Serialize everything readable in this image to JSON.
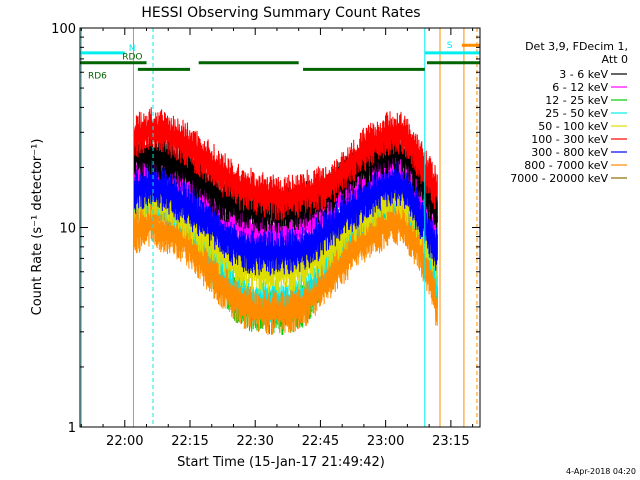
{
  "chart_data": {
    "type": "line",
    "title": "HESSI Observing Summary Count Rates",
    "xlabel": "Start Time (15-Jan-17 21:49:42)",
    "ylabel": "Count Rate (s⁻¹ detector⁻¹)",
    "yscale": "log",
    "ylim": [
      1,
      100
    ],
    "xlim_min": [
      -10.3,
      81.7
    ],
    "x_ticks": [
      {
        "m": 0,
        "label": "22:00"
      },
      {
        "m": 15,
        "label": "22:15"
      },
      {
        "m": 30,
        "label": "22:30"
      },
      {
        "m": 45,
        "label": "22:45"
      },
      {
        "m": 60,
        "label": "23:00"
      },
      {
        "m": 75,
        "label": "23:15"
      }
    ],
    "y_ticks": [
      {
        "v": 1,
        "label": "1"
      },
      {
        "v": 10,
        "label": "10"
      },
      {
        "v": 100,
        "label": "100"
      }
    ],
    "time_axis_note": "x values are minutes after 22:00",
    "legend": {
      "position": "right",
      "header": [
        "Det 3,9, FDecim 1,",
        "Att 0"
      ]
    },
    "series": [
      {
        "name": "3 - 6 keV",
        "color": "#000000",
        "envelope": [
          [
            2,
            24
          ],
          [
            6,
            25
          ],
          [
            10,
            23
          ],
          [
            14,
            21
          ],
          [
            18,
            18
          ],
          [
            22,
            15
          ],
          [
            26,
            14
          ],
          [
            30,
            13
          ],
          [
            34,
            13
          ],
          [
            38,
            13
          ],
          [
            42,
            14
          ],
          [
            46,
            15
          ],
          [
            50,
            18
          ],
          [
            54,
            21
          ],
          [
            58,
            24
          ],
          [
            60,
            25
          ],
          [
            62,
            26
          ],
          [
            64,
            25
          ],
          [
            66,
            22
          ],
          [
            68,
            19
          ],
          [
            70,
            15
          ],
          [
            72,
            13
          ]
        ]
      },
      {
        "name": "6 - 12 keV",
        "color": "#ff00ff",
        "envelope": [
          [
            2,
            20
          ],
          [
            6,
            21
          ],
          [
            10,
            19
          ],
          [
            14,
            17
          ],
          [
            18,
            15
          ],
          [
            22,
            12
          ],
          [
            26,
            11
          ],
          [
            30,
            10
          ],
          [
            34,
            10
          ],
          [
            38,
            10
          ],
          [
            42,
            11
          ],
          [
            46,
            12
          ],
          [
            50,
            15
          ],
          [
            54,
            18
          ],
          [
            58,
            20
          ],
          [
            60,
            21
          ],
          [
            62,
            22
          ],
          [
            64,
            21
          ],
          [
            66,
            18
          ],
          [
            68,
            15
          ],
          [
            70,
            12
          ],
          [
            72,
            10
          ]
        ]
      },
      {
        "name": "12 - 25 keV",
        "color": "#00cc00",
        "envelope": [
          [
            2,
            14
          ],
          [
            6,
            15
          ],
          [
            10,
            13
          ],
          [
            14,
            11
          ],
          [
            18,
            8
          ],
          [
            22,
            6
          ],
          [
            26,
            4.5
          ],
          [
            30,
            4
          ],
          [
            34,
            4
          ],
          [
            38,
            4
          ],
          [
            42,
            4.5
          ],
          [
            46,
            6
          ],
          [
            50,
            8
          ],
          [
            54,
            11
          ],
          [
            58,
            13
          ],
          [
            60,
            14
          ],
          [
            62,
            15
          ],
          [
            64,
            14
          ],
          [
            66,
            12
          ],
          [
            68,
            9
          ],
          [
            70,
            7
          ],
          [
            72,
            5
          ]
        ]
      },
      {
        "name": "25 - 50 keV",
        "color": "#00eeee",
        "envelope": [
          [
            2,
            14
          ],
          [
            6,
            15
          ],
          [
            10,
            13
          ],
          [
            14,
            11
          ],
          [
            18,
            8.5
          ],
          [
            22,
            6.5
          ],
          [
            26,
            5
          ],
          [
            30,
            4.5
          ],
          [
            34,
            4.5
          ],
          [
            38,
            4.5
          ],
          [
            42,
            5
          ],
          [
            46,
            6.5
          ],
          [
            50,
            9
          ],
          [
            54,
            11
          ],
          [
            58,
            13
          ],
          [
            60,
            14
          ],
          [
            62,
            15
          ],
          [
            64,
            14
          ],
          [
            66,
            12
          ],
          [
            68,
            9.5
          ],
          [
            70,
            7.5
          ],
          [
            72,
            5.5
          ]
        ]
      },
      {
        "name": "50 - 100 keV",
        "color": "#dddd00",
        "envelope": [
          [
            2,
            15
          ],
          [
            6,
            16
          ],
          [
            10,
            14
          ],
          [
            14,
            12
          ],
          [
            18,
            10
          ],
          [
            22,
            8
          ],
          [
            26,
            7
          ],
          [
            30,
            6.5
          ],
          [
            34,
            6.5
          ],
          [
            38,
            6.5
          ],
          [
            42,
            7
          ],
          [
            46,
            8
          ],
          [
            50,
            10
          ],
          [
            54,
            12
          ],
          [
            58,
            14
          ],
          [
            60,
            15
          ],
          [
            62,
            16
          ],
          [
            64,
            15
          ],
          [
            66,
            13
          ],
          [
            68,
            11
          ],
          [
            70,
            9
          ],
          [
            72,
            7
          ]
        ]
      },
      {
        "name": "100 - 300 keV",
        "color": "#ff0000",
        "envelope": [
          [
            2,
            30
          ],
          [
            6,
            33
          ],
          [
            10,
            31
          ],
          [
            14,
            28
          ],
          [
            18,
            24
          ],
          [
            22,
            20
          ],
          [
            26,
            17
          ],
          [
            30,
            16
          ],
          [
            34,
            15
          ],
          [
            38,
            15
          ],
          [
            42,
            16
          ],
          [
            46,
            17
          ],
          [
            50,
            20
          ],
          [
            54,
            25
          ],
          [
            58,
            29
          ],
          [
            60,
            31
          ],
          [
            62,
            32
          ],
          [
            64,
            31
          ],
          [
            66,
            27
          ],
          [
            68,
            23
          ],
          [
            70,
            19
          ],
          [
            72,
            16
          ]
        ]
      },
      {
        "name": "300 - 800 keV",
        "color": "#0000ff",
        "envelope": [
          [
            2,
            16
          ],
          [
            6,
            18
          ],
          [
            10,
            16
          ],
          [
            14,
            14
          ],
          [
            18,
            12
          ],
          [
            22,
            10
          ],
          [
            26,
            8.5
          ],
          [
            30,
            8
          ],
          [
            34,
            8
          ],
          [
            38,
            8
          ],
          [
            42,
            8.5
          ],
          [
            46,
            10
          ],
          [
            50,
            12
          ],
          [
            54,
            14
          ],
          [
            58,
            16
          ],
          [
            60,
            17
          ],
          [
            62,
            18
          ],
          [
            64,
            17
          ],
          [
            66,
            15
          ],
          [
            68,
            12
          ],
          [
            70,
            10
          ],
          [
            72,
            8
          ]
        ]
      },
      {
        "name": "800 - 7000 keV",
        "color": "#ff8c00",
        "envelope": [
          [
            2,
            10
          ],
          [
            6,
            11
          ],
          [
            10,
            10
          ],
          [
            14,
            9
          ],
          [
            18,
            7
          ],
          [
            22,
            5.5
          ],
          [
            26,
            4.5
          ],
          [
            30,
            4
          ],
          [
            34,
            4
          ],
          [
            38,
            4
          ],
          [
            42,
            4.5
          ],
          [
            46,
            5.5
          ],
          [
            50,
            7
          ],
          [
            54,
            9
          ],
          [
            58,
            10
          ],
          [
            60,
            11
          ],
          [
            62,
            11.5
          ],
          [
            64,
            11
          ],
          [
            66,
            9.5
          ],
          [
            68,
            8
          ],
          [
            70,
            6
          ],
          [
            72,
            4
          ]
        ]
      },
      {
        "name": "7000 - 20000 keV",
        "color": "#8b6b00",
        "envelope": []
      }
    ],
    "flags": [
      {
        "label": "N",
        "color": "#00eeee",
        "start": -10.3,
        "end": 0,
        "y": 75
      },
      {
        "label": "S",
        "color": "#00eeee",
        "start": 69,
        "end": 81.7,
        "y": 75
      },
      {
        "label": "",
        "color": "#ff8c00",
        "start": 77.5,
        "end": 81.7,
        "y": 82
      },
      {
        "label": "RDO",
        "color": "#006400",
        "start": -10.3,
        "end": 5,
        "y": 67
      },
      {
        "label": "RD6",
        "color": "#006400",
        "start": 3,
        "end": 15,
        "y": 62
      },
      {
        "label": "",
        "color": "#006400",
        "start": 17,
        "end": 40,
        "y": 67
      },
      {
        "label": "",
        "color": "#006400",
        "start": 41,
        "end": 69,
        "y": 62
      },
      {
        "label": "",
        "color": "#006400",
        "start": 69.5,
        "end": 81.7,
        "y": 67
      }
    ],
    "vertical_lines": [
      {
        "x": -10,
        "color": "#00eeee",
        "style": "solid"
      },
      {
        "x": 6.5,
        "color": "#00eeee",
        "style": "dashed"
      },
      {
        "x": 69,
        "color": "#00eeee",
        "style": "solid"
      },
      {
        "x": 2,
        "color": "#ff8c00",
        "style": "solid"
      },
      {
        "x": 72.5,
        "color": "#ff8c00",
        "style": "solid"
      },
      {
        "x": 78,
        "color": "#ff8c00",
        "style": "solid"
      },
      {
        "x": 81,
        "color": "#ff8c00",
        "style": "dashed"
      }
    ],
    "footer_date": "4-Apr-2018 04:20"
  }
}
